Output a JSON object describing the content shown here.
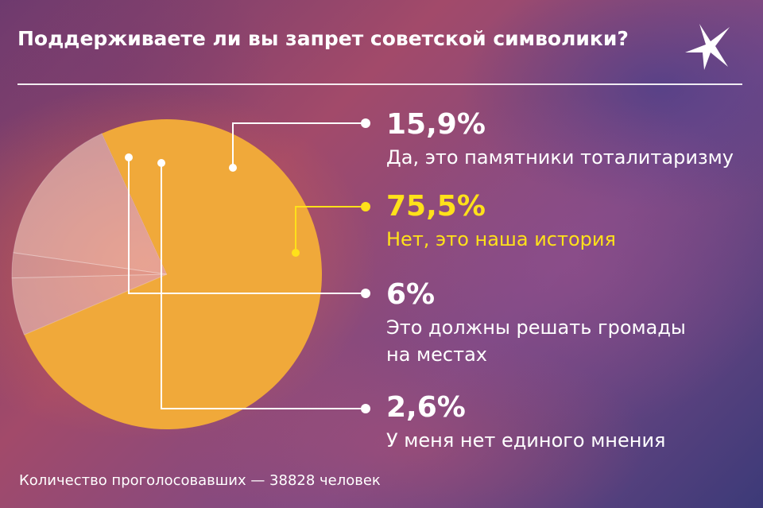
{
  "title": "Поддерживаете ли вы запрет советской символики?",
  "footer": "Количество проголосовавших — 38828 человек",
  "colors": {
    "accent": "#ffe11a",
    "yes_slice": "rgba(255,220,200,0.55)",
    "no_slice": "#f0a93a",
    "hromady_slice": "rgba(255,225,205,0.5)",
    "no_opinion_slice": "rgba(255,225,205,0.45)",
    "text": "#ffffff"
  },
  "logo_icon": "bird-logo-icon",
  "chart_data": {
    "type": "pie",
    "title": "Поддерживаете ли вы запрет советской символики?",
    "slices": [
      {
        "label": "Да, это памятники тоталитаризму",
        "value": 15.9,
        "value_label": "15,9%"
      },
      {
        "label": "Нет, это наша история",
        "value": 75.5,
        "value_label": "75,5%",
        "highlight": true
      },
      {
        "label": "Это должны решать громады на местах",
        "value": 6,
        "value_label": "6%"
      },
      {
        "label": "У меня нет единого мнения",
        "value": 2.6,
        "value_label": "2,6%"
      }
    ],
    "legend": "right",
    "annotation": "Количество проголосовавших — 38828 человек"
  },
  "legend": [
    {
      "pct": "15,9%",
      "desc": "Да, это памятники тоталитаризму"
    },
    {
      "pct": "75,5%",
      "desc": "Нет, это наша история"
    },
    {
      "pct": "6%",
      "desc": "Это должны решать громады на местах"
    },
    {
      "pct": "2,6%",
      "desc": "У меня нет единого мнения"
    }
  ]
}
